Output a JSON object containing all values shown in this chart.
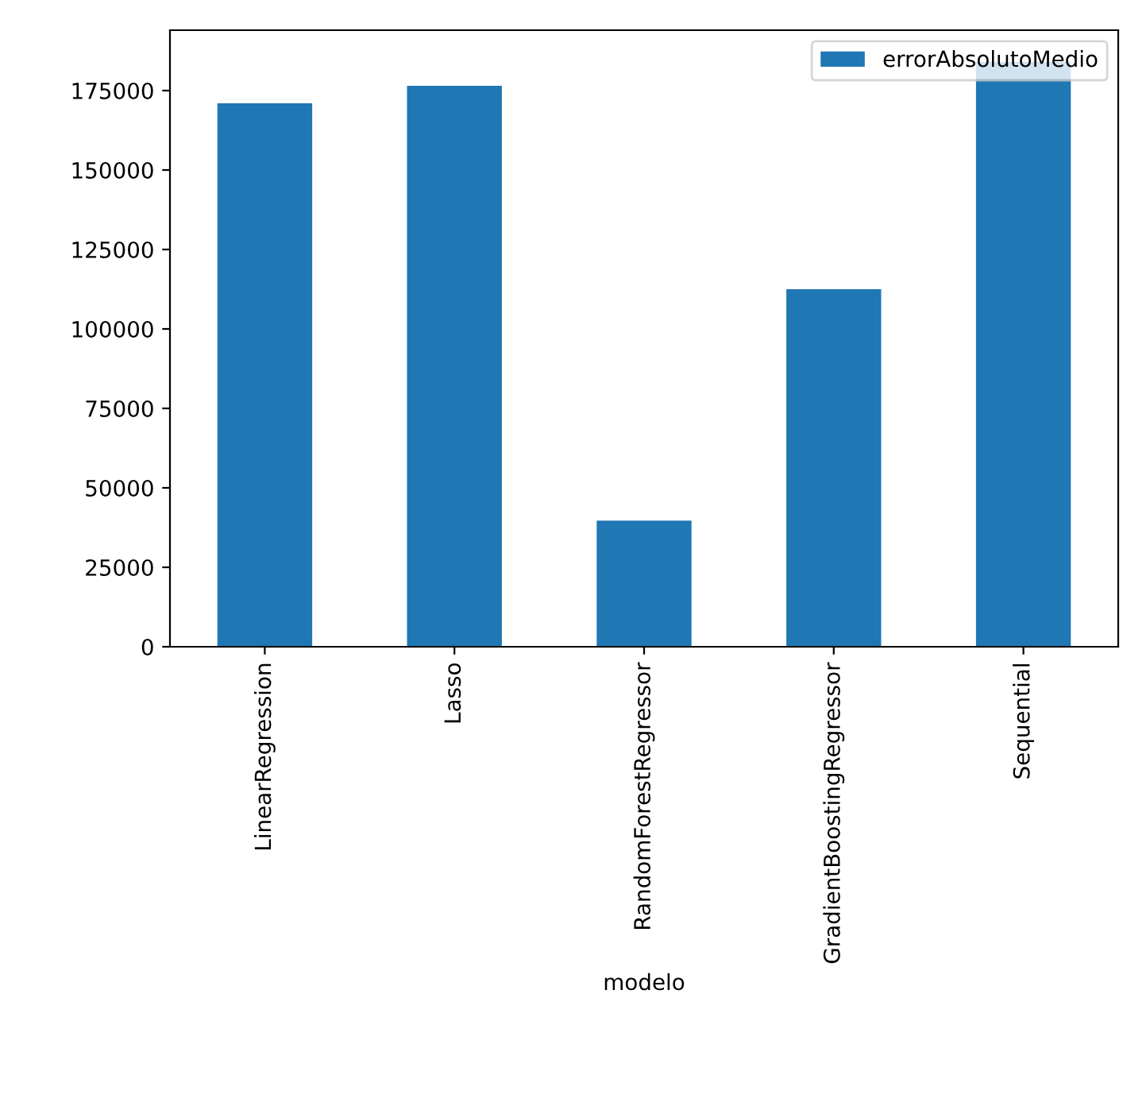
{
  "chart_data": {
    "type": "bar",
    "xlabel": "modelo",
    "categories": [
      "LinearRegression",
      "Lasso",
      "RandomForestRegressor",
      "GradientBoostingRegressor",
      "Sequential"
    ],
    "series": [
      {
        "name": "errorAbsolutoMedio",
        "color": "#1f77b4",
        "values": [
          171000,
          176500,
          39700,
          112500,
          184000
        ]
      }
    ],
    "ylim": [
      0,
      194000
    ],
    "yticks": [
      0,
      25000,
      50000,
      75000,
      100000,
      125000,
      150000,
      175000
    ],
    "legend": "top right",
    "grid": false
  }
}
